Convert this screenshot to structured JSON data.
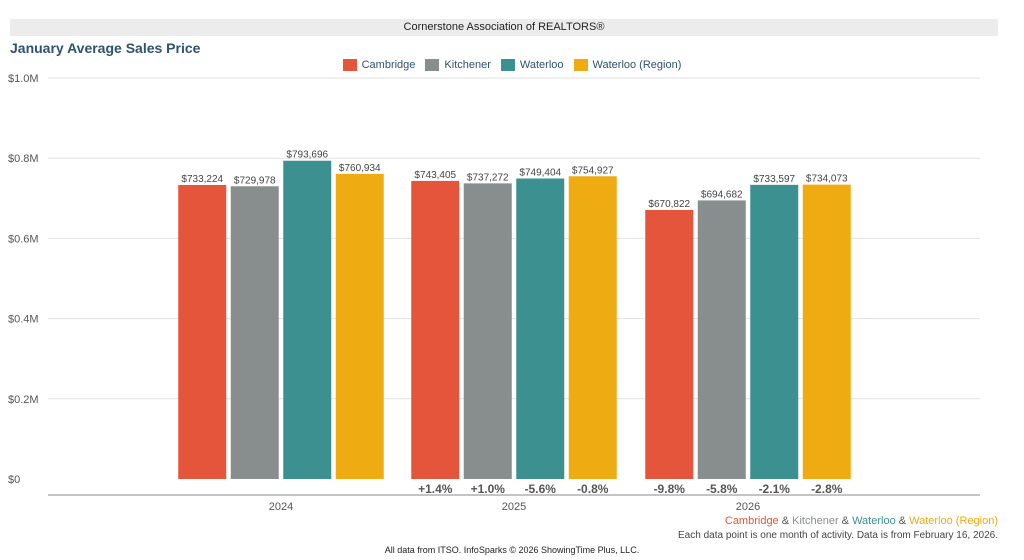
{
  "header": {
    "org": "Cornerstone Association of REALTORS®"
  },
  "chart_data": {
    "type": "bar",
    "title": "January Average Sales Price",
    "categories": [
      "2024",
      "2025",
      "2026"
    ],
    "series": [
      {
        "name": "Cambridge",
        "color": "#e5553b",
        "values": [
          733224,
          743405,
          670822
        ],
        "labels": [
          "$733,224",
          "$743,405",
          "$670,822"
        ],
        "changes": [
          "",
          "+1.4%",
          "-9.8%"
        ]
      },
      {
        "name": "Kitchener",
        "color": "#888e8d",
        "values": [
          729978,
          737272,
          694682
        ],
        "labels": [
          "$729,978",
          "$737,272",
          "$694,682"
        ],
        "changes": [
          "",
          "+1.0%",
          "-5.8%"
        ]
      },
      {
        "name": "Waterloo",
        "color": "#3d9090",
        "values": [
          793696,
          749404,
          733597
        ],
        "labels": [
          "$793,696",
          "$749,404",
          "$733,597"
        ],
        "changes": [
          "",
          "-5.6%",
          "-2.1%"
        ]
      },
      {
        "name": "Waterloo (Region)",
        "color": "#eeab12",
        "values": [
          760934,
          754927,
          734073
        ],
        "labels": [
          "$760,934",
          "$754,927",
          "$734,073"
        ],
        "changes": [
          "",
          "-0.8%",
          "-2.8%"
        ]
      }
    ],
    "ylim": [
      0,
      1000000
    ],
    "yticks": [
      0,
      200000,
      400000,
      600000,
      800000,
      1000000
    ],
    "ytick_labels": [
      "$0",
      "$0.2M",
      "$0.4M",
      "$0.6M",
      "$0.8M",
      "$1.0M"
    ],
    "grid": true,
    "legend_position": "top-center"
  },
  "footer": {
    "series_note": [
      {
        "text": "Cambridge",
        "color": "#e5553b"
      },
      {
        "text": " & ",
        "color": "#555555"
      },
      {
        "text": "Kitchener",
        "color": "#888e8d"
      },
      {
        "text": " & ",
        "color": "#555555"
      },
      {
        "text": "Waterloo",
        "color": "#3d9090"
      },
      {
        "text": " & ",
        "color": "#555555"
      },
      {
        "text": "Waterloo (Region)",
        "color": "#eeab12"
      }
    ],
    "note": "Each data point is one month of activity. Data is from February 16, 2026.",
    "credit": "All data from ITSO. InfoSparks © 2026 ShowingTime Plus, LLC."
  }
}
